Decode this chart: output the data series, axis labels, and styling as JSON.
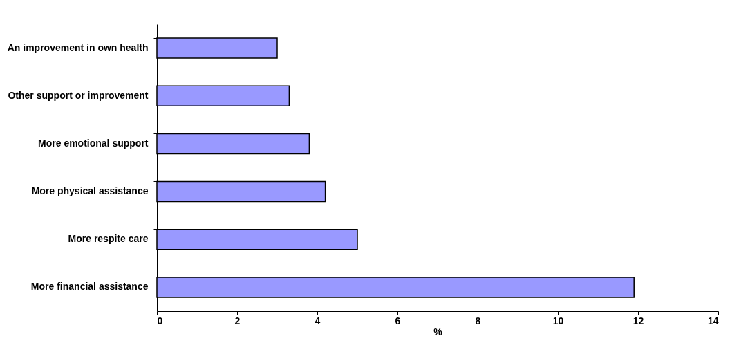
{
  "chart_data": {
    "type": "bar",
    "orientation": "horizontal",
    "xlabel": "%",
    "categories": [
      "An improvement in own health",
      "Other support or improvement",
      "More emotional support",
      "More physical assistance",
      "More respite care",
      "More financial assistance"
    ],
    "values": [
      3.0,
      3.3,
      3.8,
      4.2,
      5.0,
      11.9
    ],
    "color": "#9999ff",
    "xlim": [
      0,
      14
    ],
    "xticks": [
      0,
      2,
      4,
      6,
      8,
      10,
      12,
      14
    ],
    "grid": false
  }
}
